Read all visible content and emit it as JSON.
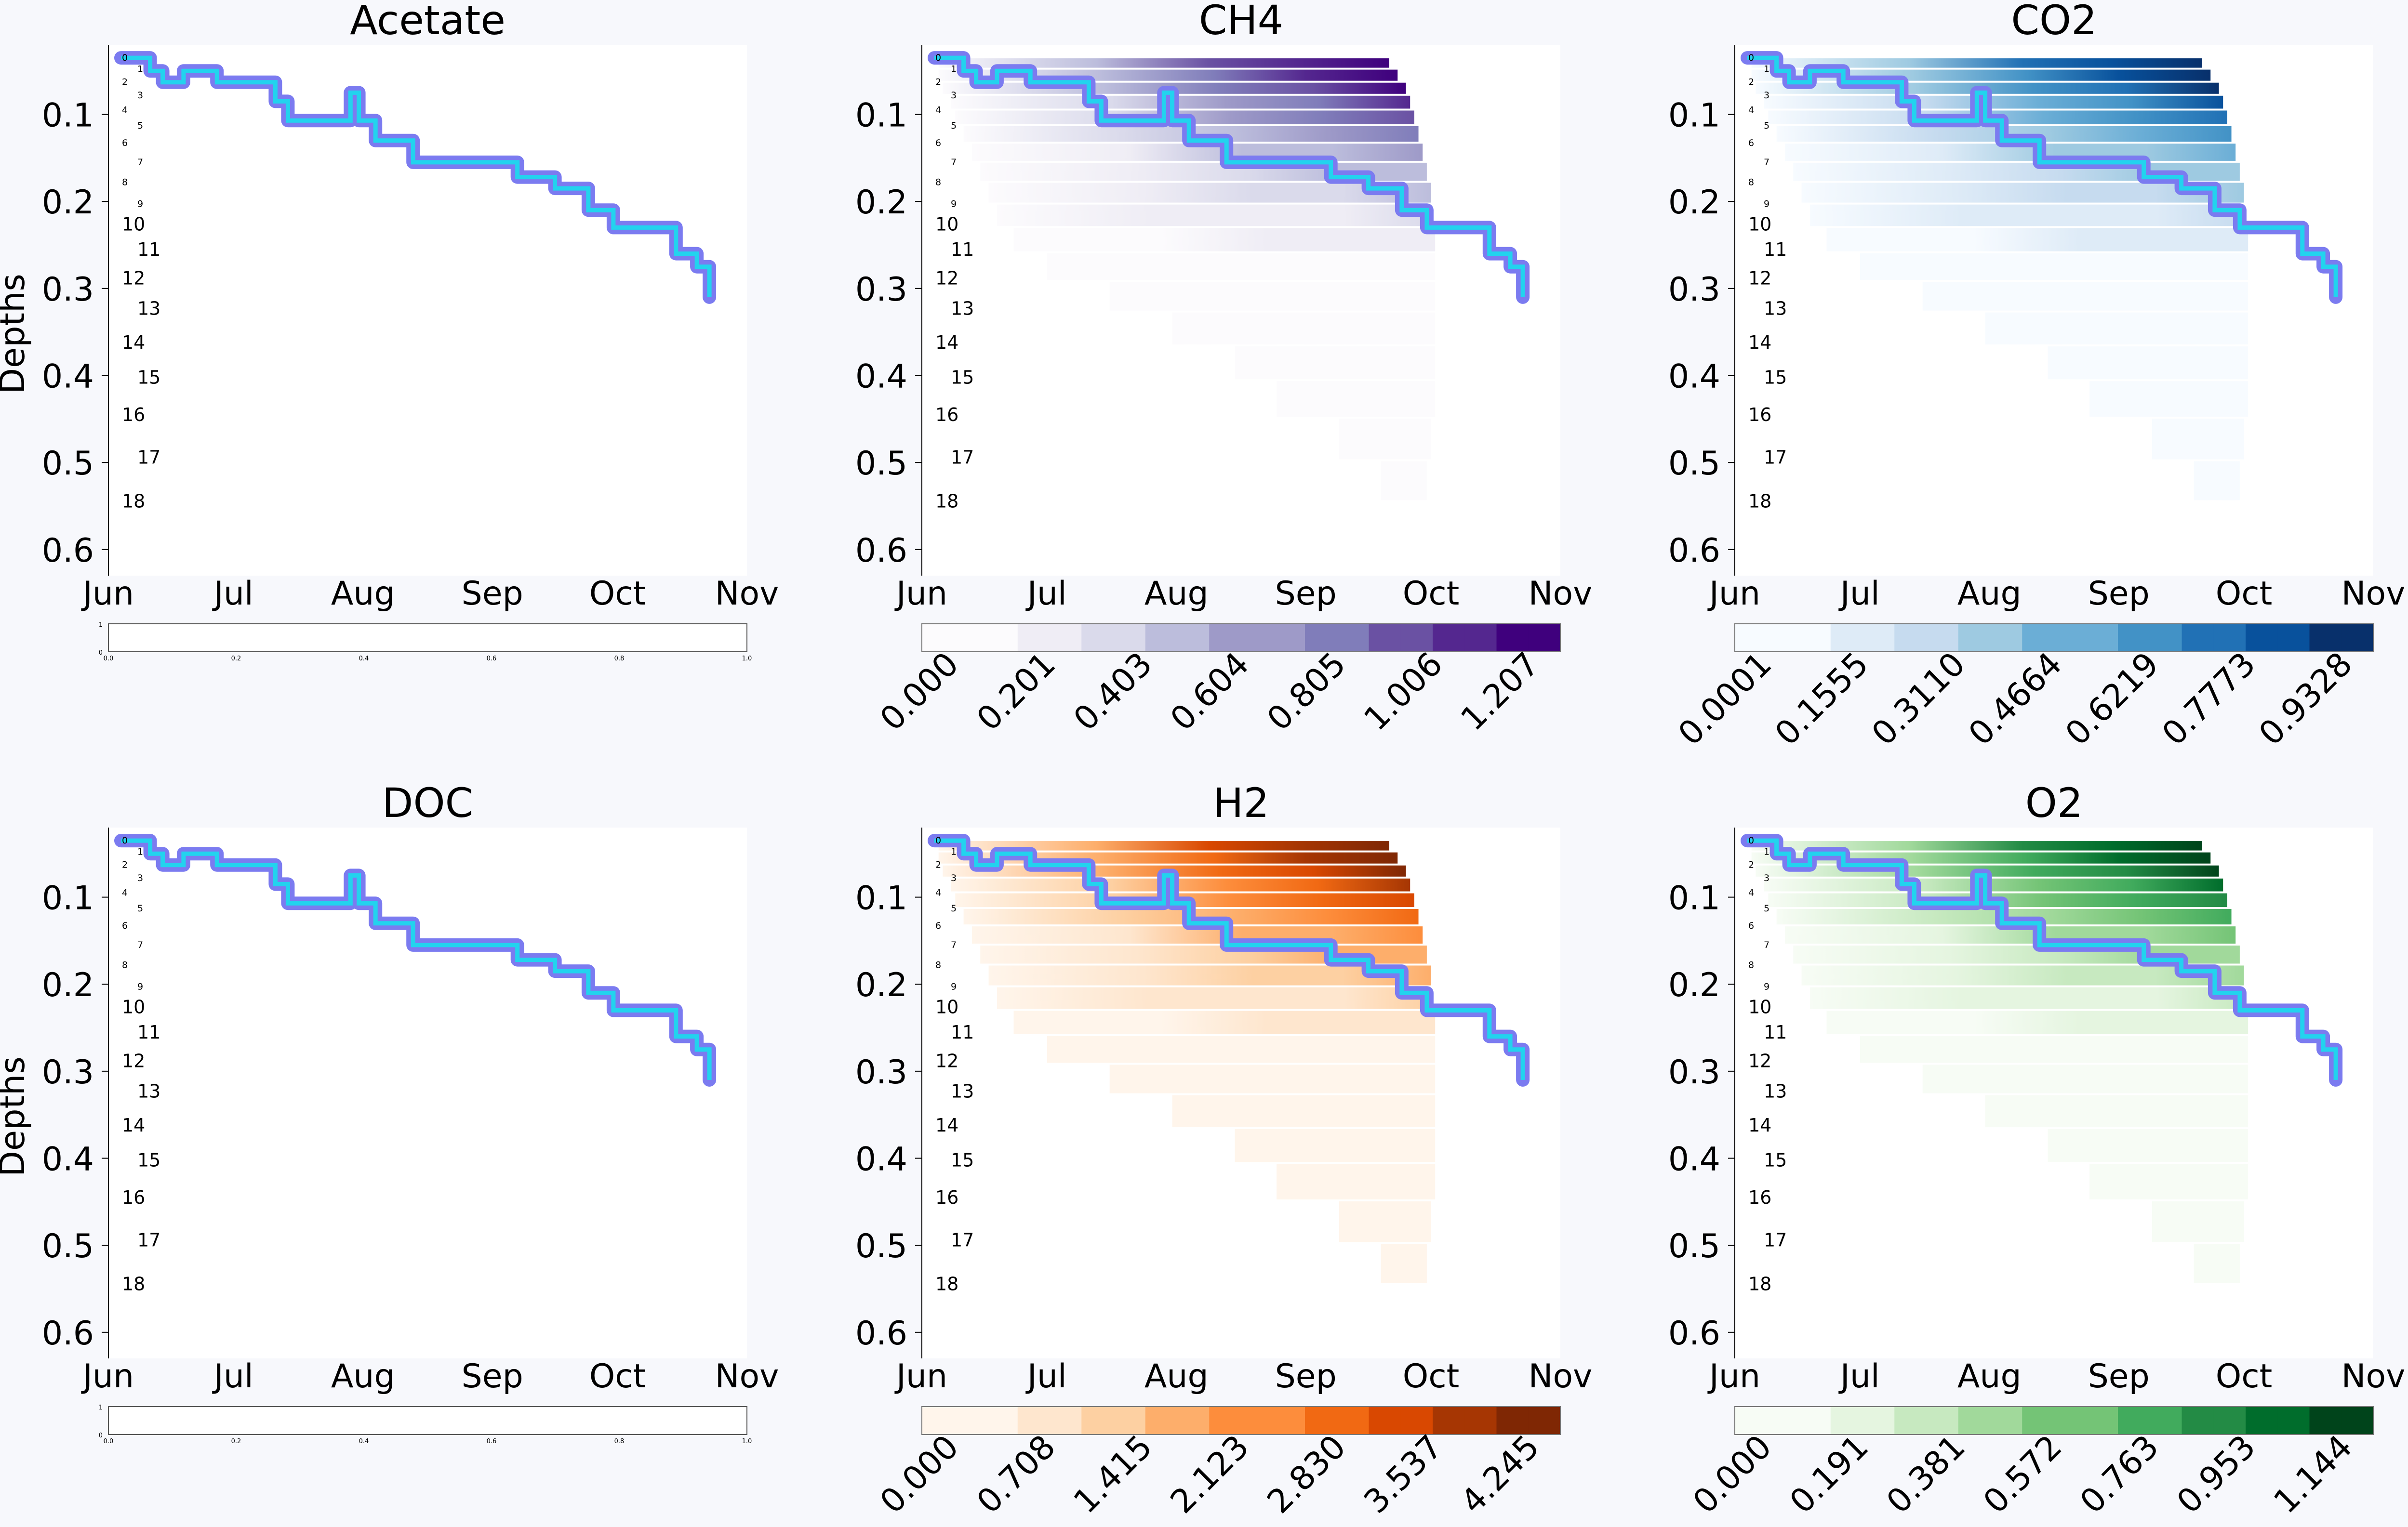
{
  "figure": {
    "background": "#f7f8fc",
    "depth_label_numbers": [
      "0",
      "1",
      "2",
      "3",
      "4",
      "5",
      "6",
      "7",
      "8",
      "9",
      "10",
      "11",
      "12",
      "13",
      "14",
      "15",
      "16",
      "17",
      "18"
    ]
  },
  "chart_data": [
    {
      "type": "heatmap",
      "title": "Acetate",
      "ylabel": "Depths",
      "xticks": [
        "Jun",
        "Jul",
        "Aug",
        "Sep",
        "Oct",
        "Nov"
      ],
      "yticks": [
        "0.1",
        "0.2",
        "0.3",
        "0.4",
        "0.5",
        "0.6"
      ],
      "ylim": [
        0.63,
        0.02
      ],
      "colormap": "empty",
      "colorbar": {
        "ticks": [
          "0.0",
          "0.2",
          "0.4",
          "0.6",
          "0.8",
          "1.0"
        ],
        "side_ticks": [
          "1",
          "0"
        ]
      },
      "water_table": true
    },
    {
      "type": "heatmap",
      "title": "CH4",
      "ylabel": "",
      "xticks": [
        "Jun",
        "Jul",
        "Aug",
        "Sep",
        "Oct",
        "Nov"
      ],
      "yticks": [
        "0.1",
        "0.2",
        "0.3",
        "0.4",
        "0.5",
        "0.6"
      ],
      "ylim": [
        0.63,
        0.02
      ],
      "colormap": "Purples",
      "colors": [
        "#fcfbfd",
        "#efedf5",
        "#dadaeb",
        "#bcbddc",
        "#9e9ac8",
        "#807dba",
        "#6a51a3",
        "#54278f",
        "#3f007d"
      ],
      "colorbar": {
        "ticks": [
          "0.000",
          "0.201",
          "0.403",
          "0.604",
          "0.805",
          "1.006",
          "1.207"
        ]
      },
      "water_table": true
    },
    {
      "type": "heatmap",
      "title": "CO2",
      "ylabel": "",
      "xticks": [
        "Jun",
        "Jul",
        "Aug",
        "Sep",
        "Oct",
        "Nov"
      ],
      "yticks": [
        "0.1",
        "0.2",
        "0.3",
        "0.4",
        "0.5",
        "0.6"
      ],
      "ylim": [
        0.63,
        0.02
      ],
      "colormap": "Blues",
      "colors": [
        "#f7fbff",
        "#deebf7",
        "#c6dbef",
        "#9ecae1",
        "#6baed6",
        "#4292c6",
        "#2171b5",
        "#08519c",
        "#08306b"
      ],
      "colorbar": {
        "ticks": [
          "0.0001",
          "0.1555",
          "0.3110",
          "0.4664",
          "0.6219",
          "0.7773",
          "0.9328"
        ]
      },
      "water_table": true
    },
    {
      "type": "heatmap",
      "title": "DOC",
      "ylabel": "Depths",
      "xticks": [
        "Jun",
        "Jul",
        "Aug",
        "Sep",
        "Oct",
        "Nov"
      ],
      "yticks": [
        "0.1",
        "0.2",
        "0.3",
        "0.4",
        "0.5",
        "0.6"
      ],
      "ylim": [
        0.63,
        0.02
      ],
      "colormap": "empty",
      "colorbar": {
        "ticks": [
          "0.0",
          "0.2",
          "0.4",
          "0.6",
          "0.8",
          "1.0"
        ],
        "side_ticks": [
          "1",
          "0"
        ]
      },
      "water_table": true
    },
    {
      "type": "heatmap",
      "title": "H2",
      "ylabel": "",
      "xticks": [
        "Jun",
        "Jul",
        "Aug",
        "Sep",
        "Oct",
        "Nov"
      ],
      "yticks": [
        "0.1",
        "0.2",
        "0.3",
        "0.4",
        "0.5",
        "0.6"
      ],
      "ylim": [
        0.63,
        0.02
      ],
      "colormap": "Oranges",
      "colors": [
        "#fff5eb",
        "#fee6ce",
        "#fdd0a2",
        "#fdae6b",
        "#fd8d3c",
        "#f16913",
        "#d94801",
        "#a63603",
        "#7f2704"
      ],
      "colorbar": {
        "ticks": [
          "0.000",
          "0.708",
          "1.415",
          "2.123",
          "2.830",
          "3.537",
          "4.245"
        ]
      },
      "water_table": true
    },
    {
      "type": "heatmap",
      "title": "O2",
      "ylabel": "",
      "xticks": [
        "Jun",
        "Jul",
        "Aug",
        "Sep",
        "Oct",
        "Nov"
      ],
      "yticks": [
        "0.1",
        "0.2",
        "0.3",
        "0.4",
        "0.5",
        "0.6"
      ],
      "ylim": [
        0.63,
        0.02
      ],
      "colormap": "Greens",
      "colors": [
        "#f7fcf5",
        "#e5f5e0",
        "#c7e9c0",
        "#a1d99b",
        "#74c476",
        "#41ab5d",
        "#238b45",
        "#006d2c",
        "#00441b"
      ],
      "colorbar": {
        "ticks": [
          "0.000",
          "0.191",
          "0.381",
          "0.572",
          "0.763",
          "0.953",
          "1.144"
        ]
      },
      "water_table": true
    }
  ]
}
